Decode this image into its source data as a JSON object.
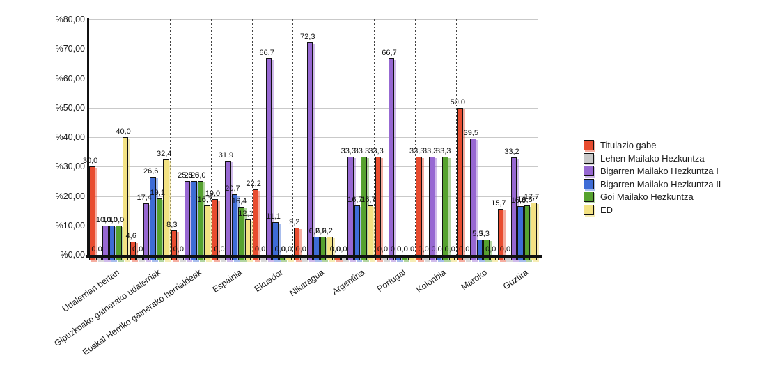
{
  "chart_data": {
    "type": "bar",
    "title": "",
    "xlabel": "",
    "ylabel": "",
    "ylim": [
      0,
      80
    ],
    "ytick_step": 10,
    "ytick_labels": [
      "%0,00",
      "%10,00",
      "%20,00",
      "%30,00",
      "%40,00",
      "%50,00",
      "%60,00",
      "%70,00",
      "%80,00"
    ],
    "grid": true,
    "legend_position": "right",
    "decimal_separator": ",",
    "categories": [
      "Udalerrian bertan",
      "Gipuzkoako gainerako udalerriak",
      "Euskal Herriko gainerako herrialdeak",
      "Espainia",
      "Ekuador",
      "Nikaragua",
      "Argentina",
      "Portugal",
      "Kolonbia",
      "Maroko",
      "Guztira"
    ],
    "series": [
      {
        "name": "Titulazio gabe",
        "color": "#e84c2f",
        "shadow": "rgba(232,76,47,0.45)",
        "values": [
          30.0,
          4.6,
          8.3,
          19.0,
          22.2,
          9.2,
          0.0,
          33.3,
          33.3,
          50.0,
          15.7
        ]
      },
      {
        "name": "Lehen Mailako Hezkuntza",
        "color": "#c9c9c9",
        "shadow": "rgba(170,170,170,0.45)",
        "values": [
          0.0,
          0.0,
          0.0,
          0.0,
          0.0,
          0.0,
          0.0,
          0.0,
          0.0,
          0.0,
          0.0
        ]
      },
      {
        "name": "Bigarren Mailako Hezkuntza I",
        "color": "#9768d2",
        "shadow": "rgba(151,104,210,0.45)",
        "values": [
          10.0,
          17.4,
          25.0,
          31.9,
          66.7,
          72.3,
          33.3,
          66.7,
          33.3,
          39.5,
          33.2
        ]
      },
      {
        "name": "Bigarren Mailako Hezkuntza II",
        "color": "#3e6cd6",
        "shadow": "rgba(62,108,214,0.45)",
        "values": [
          10.0,
          26.6,
          25.0,
          20.7,
          11.1,
          6.2,
          16.7,
          0.0,
          0.0,
          5.3,
          16.6
        ]
      },
      {
        "name": "Goi Mailako Hezkuntza",
        "color": "#56a22f",
        "shadow": "rgba(86,162,47,0.45)",
        "values": [
          10.0,
          19.1,
          25.0,
          16.4,
          0.0,
          6.2,
          33.3,
          0.0,
          33.3,
          5.3,
          16.8
        ]
      },
      {
        "name": "ED",
        "color": "#f3e283",
        "shadow": "rgba(240,222,120,0.55)",
        "values": [
          40.0,
          32.4,
          16.7,
          12.1,
          0.0,
          6.2,
          16.7,
          0.0,
          0.0,
          0.0,
          17.7
        ]
      }
    ]
  }
}
